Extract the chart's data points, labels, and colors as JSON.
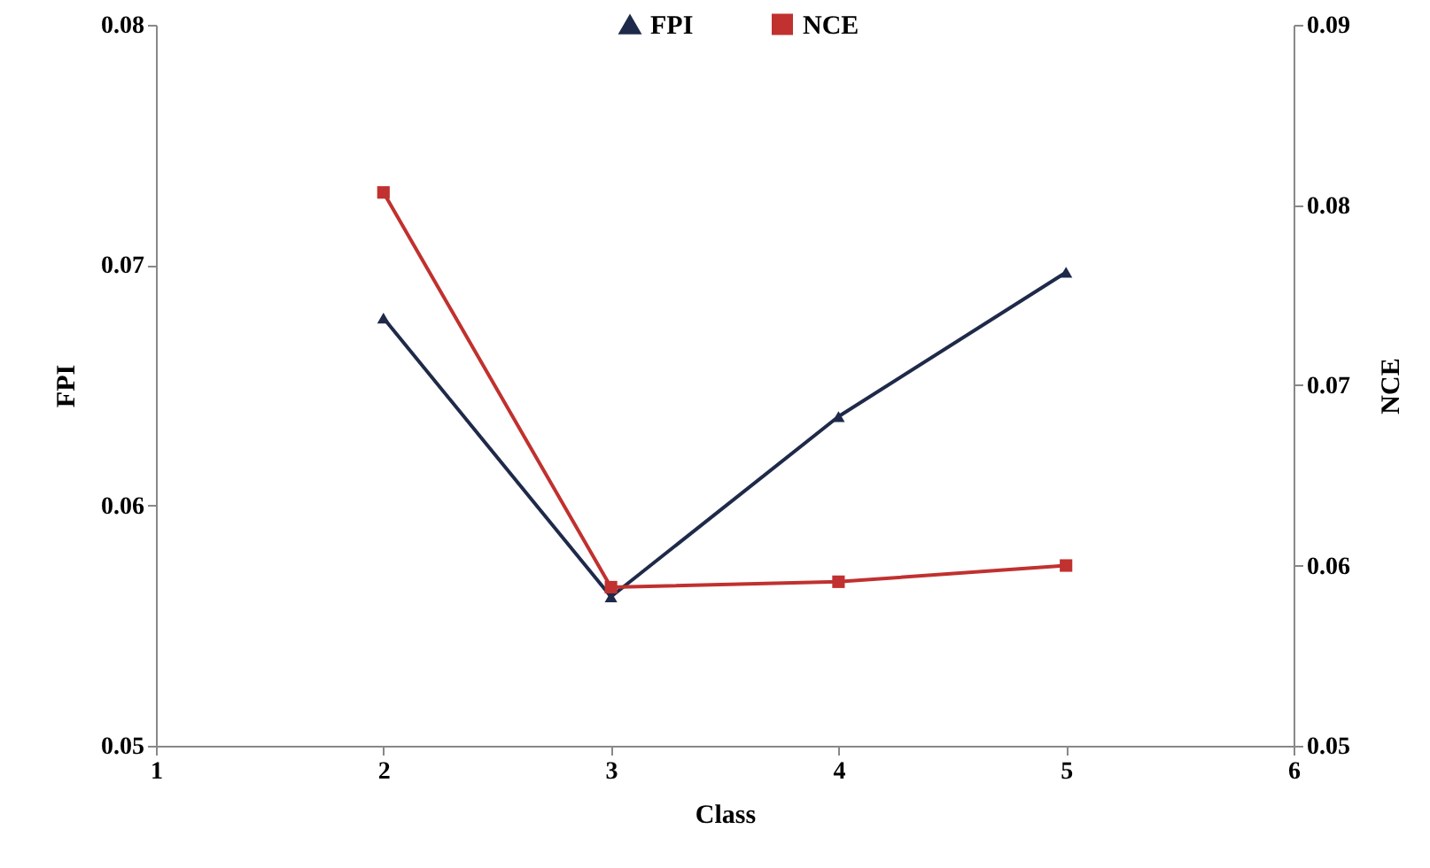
{
  "chart_data": {
    "type": "line",
    "xlabel": "Class",
    "ylabel": "FPI",
    "y2label": "NCE",
    "x": [
      2,
      3,
      4,
      5
    ],
    "series": [
      {
        "name": "FPI",
        "color": "#1f2a4a",
        "marker": "triangle",
        "values": [
          0.0678,
          0.0562,
          0.0637,
          0.0697
        ]
      },
      {
        "name": "NCE",
        "color": "#c0312f",
        "marker": "square",
        "axis": "y2",
        "values": [
          0.0807,
          0.0588,
          0.0591,
          0.06
        ]
      }
    ],
    "xlim": [
      1,
      6
    ],
    "xticks": [
      1,
      2,
      3,
      4,
      5,
      6
    ],
    "ylim": [
      0.05,
      0.08
    ],
    "yticks": [
      0.05,
      0.06,
      0.07,
      0.08
    ],
    "y2lim": [
      0.05,
      0.09
    ],
    "y2ticks": [
      0.05,
      0.06,
      0.07,
      0.08,
      0.09
    ],
    "grid": false,
    "legend": "top",
    "line_style": "solid"
  }
}
